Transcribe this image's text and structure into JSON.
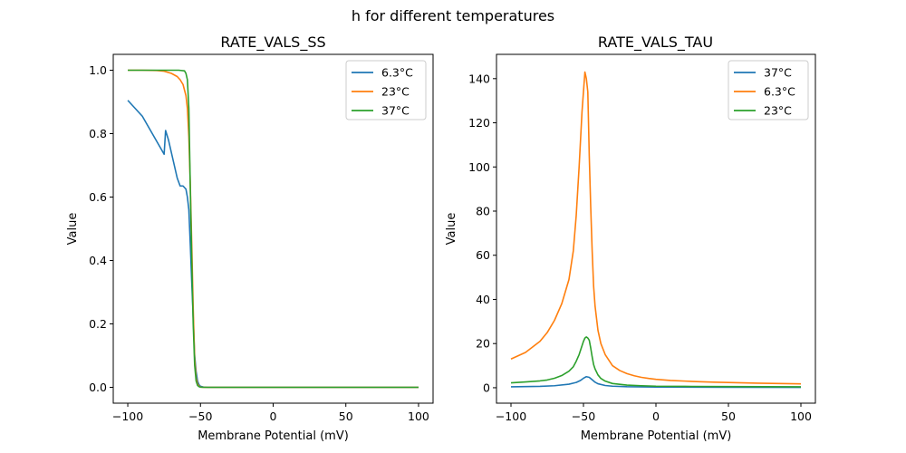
{
  "figure": {
    "suptitle": "h for different temperatures"
  },
  "chart_data": [
    {
      "type": "line",
      "title": "RATE_VALS_SS",
      "xlabel": "Membrane Potential (mV)",
      "ylabel": "Value",
      "xlim": [
        -110,
        110
      ],
      "ylim": [
        -0.05,
        1.05
      ],
      "xticks": [
        -100,
        -50,
        0,
        50,
        100
      ],
      "xtick_labels": [
        "−100",
        "−50",
        "0",
        "50",
        "100"
      ],
      "yticks": [
        0.0,
        0.2,
        0.4,
        0.6,
        0.8,
        1.0
      ],
      "ytick_labels": [
        "0.0",
        "0.2",
        "0.4",
        "0.6",
        "0.8",
        "1.0"
      ],
      "grid": false,
      "legend_position": "top-right",
      "series": [
        {
          "name": "6.3°C",
          "color": "#1f77b4",
          "x": [
            -100,
            -95,
            -90,
            -85,
            -80,
            -75,
            -74,
            -72,
            -70,
            -68,
            -66,
            -64,
            -62,
            -60,
            -59,
            -58,
            -57,
            -56,
            -55,
            -54,
            -53,
            -52,
            -51,
            -50,
            -48,
            -45,
            -40,
            0,
            50,
            100
          ],
          "y": [
            0.905,
            0.88,
            0.855,
            0.815,
            0.775,
            0.735,
            0.81,
            0.78,
            0.74,
            0.7,
            0.66,
            0.635,
            0.635,
            0.625,
            0.6,
            0.56,
            0.45,
            0.33,
            0.22,
            0.1,
            0.05,
            0.02,
            0.008,
            0.003,
            0.001,
            0.0,
            0.0,
            0.0,
            0.0,
            0.0
          ]
        },
        {
          "name": "23°C",
          "color": "#ff7f0e",
          "x": [
            -100,
            -90,
            -80,
            -75,
            -70,
            -66,
            -64,
            -62,
            -60,
            -59,
            -58,
            -57,
            -56,
            -55,
            -54,
            -53,
            -52,
            -51,
            -50,
            -48,
            -45,
            0,
            50,
            100
          ],
          "y": [
            1.0,
            1.0,
            0.999,
            0.997,
            0.99,
            0.98,
            0.97,
            0.955,
            0.92,
            0.88,
            0.79,
            0.64,
            0.45,
            0.25,
            0.09,
            0.03,
            0.01,
            0.004,
            0.001,
            0.0,
            0.0,
            0.0,
            0.0,
            0.0
          ]
        },
        {
          "name": "37°C",
          "color": "#2ca02c",
          "x": [
            -100,
            -80,
            -65,
            -61,
            -60,
            -59,
            -58,
            -57,
            -56,
            -55,
            -54,
            -53,
            -52,
            -51,
            -50,
            -48,
            -45,
            0,
            50,
            100
          ],
          "y": [
            1.0,
            1.0,
            1.0,
            0.998,
            0.99,
            0.97,
            0.88,
            0.63,
            0.4,
            0.2,
            0.07,
            0.02,
            0.006,
            0.002,
            0.0005,
            0.0,
            0.0,
            0.0,
            0.0,
            0.0
          ]
        }
      ]
    },
    {
      "type": "line",
      "title": "RATE_VALS_TAU",
      "xlabel": "Membrane Potential (mV)",
      "ylabel": "Value",
      "xlim": [
        -110,
        110
      ],
      "ylim": [
        -7,
        151
      ],
      "xticks": [
        -100,
        -50,
        0,
        50,
        100
      ],
      "xtick_labels": [
        "−100",
        "−50",
        "0",
        "50",
        "100"
      ],
      "yticks": [
        0,
        20,
        40,
        60,
        80,
        100,
        120,
        140
      ],
      "ytick_labels": [
        "0",
        "20",
        "40",
        "60",
        "80",
        "100",
        "120",
        "140"
      ],
      "grid": false,
      "legend_position": "top-right",
      "series": [
        {
          "name": "37°C",
          "color": "#1f77b4",
          "x": [
            -100,
            -80,
            -70,
            -60,
            -55,
            -52,
            -50,
            -48,
            -46,
            -44,
            -42,
            -40,
            -35,
            -30,
            -20,
            0,
            50,
            100
          ],
          "y": [
            0.4,
            0.6,
            0.9,
            1.6,
            2.4,
            3.3,
            4.3,
            5.0,
            4.7,
            3.6,
            2.5,
            1.8,
            1.0,
            0.7,
            0.45,
            0.3,
            0.2,
            0.15
          ]
        },
        {
          "name": "6.3°C",
          "color": "#ff7f0e",
          "x": [
            -100,
            -95,
            -90,
            -85,
            -80,
            -75,
            -70,
            -65,
            -60,
            -57,
            -55,
            -53,
            -51,
            -49,
            -48,
            -47,
            -46,
            -45,
            -44,
            -43,
            -42,
            -40,
            -38,
            -35,
            -30,
            -25,
            -20,
            -15,
            -10,
            -5,
            0,
            10,
            20,
            30,
            40,
            50,
            60,
            70,
            80,
            90,
            100
          ],
          "y": [
            13,
            14.5,
            16,
            18.5,
            21,
            25,
            30.5,
            38,
            49,
            62,
            78,
            100,
            125,
            143,
            140,
            134,
            105,
            82,
            62,
            46,
            37,
            26,
            20,
            15,
            10,
            7.8,
            6.4,
            5.4,
            4.7,
            4.2,
            3.8,
            3.3,
            3.0,
            2.7,
            2.5,
            2.35,
            2.2,
            2.05,
            1.95,
            1.85,
            1.75
          ]
        },
        {
          "name": "23°C",
          "color": "#2ca02c",
          "x": [
            -100,
            -90,
            -80,
            -75,
            -70,
            -65,
            -60,
            -57,
            -55,
            -53,
            -51,
            -50,
            -49,
            -48,
            -47,
            -46,
            -45,
            -44,
            -43,
            -42,
            -40,
            -38,
            -35,
            -30,
            -20,
            -10,
            0,
            20,
            50,
            100
          ],
          "y": [
            2.2,
            2.6,
            3.1,
            3.5,
            4.3,
            5.5,
            7.5,
            9.5,
            12.0,
            15.0,
            19.0,
            21.0,
            22.5,
            23.0,
            22.5,
            21.5,
            18.0,
            14.0,
            10.5,
            8.5,
            5.8,
            4.2,
            3.0,
            1.9,
            1.2,
            0.9,
            0.7,
            0.6,
            0.5,
            0.4
          ]
        }
      ]
    }
  ]
}
